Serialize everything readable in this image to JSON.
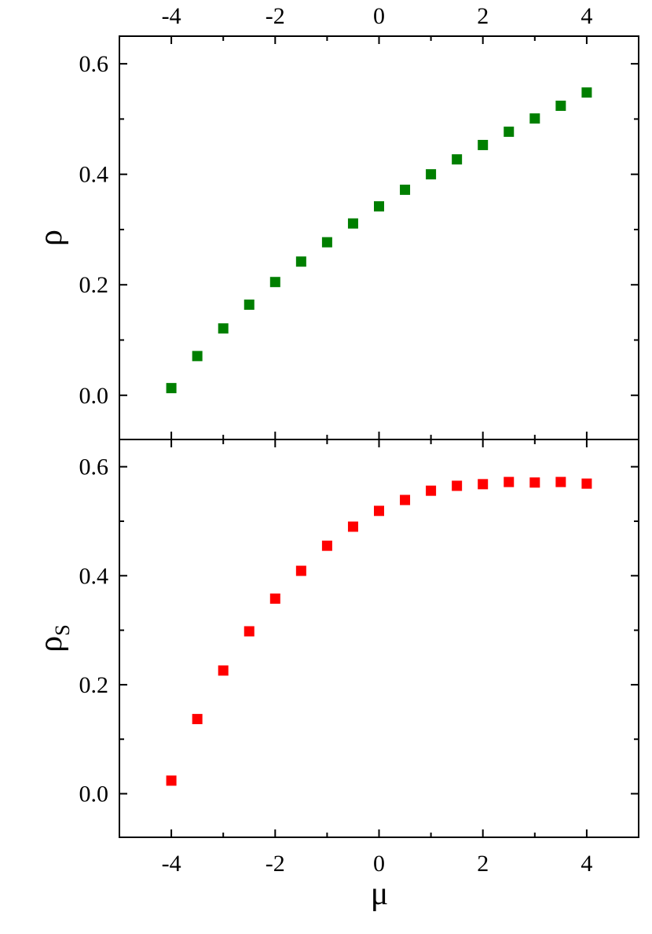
{
  "chart_data": [
    {
      "type": "scatter",
      "panel": "top",
      "ylabel": "ρ",
      "xlabel": "",
      "xlim": [
        -5,
        5
      ],
      "ylim": [
        -0.08,
        0.65
      ],
      "xticks": [
        -4,
        -2,
        0,
        2,
        4
      ],
      "xtick_labels": [
        "-4",
        "-2",
        "0",
        "2",
        "4"
      ],
      "yticks": [
        0.0,
        0.2,
        0.4,
        0.6
      ],
      "ytick_labels": [
        "0.0",
        "0.2",
        "0.4",
        "0.6"
      ],
      "marker_color": "#007f00",
      "marker": "square",
      "grid": false,
      "x": [
        -4,
        -3.5,
        -3,
        -2.5,
        -2,
        -1.5,
        -1,
        -0.5,
        0,
        0.5,
        1,
        1.5,
        2,
        2.5,
        3,
        3.5,
        4
      ],
      "y": [
        0.013,
        0.071,
        0.121,
        0.164,
        0.205,
        0.242,
        0.277,
        0.311,
        0.342,
        0.372,
        0.4,
        0.427,
        0.453,
        0.477,
        0.501,
        0.524,
        0.548
      ]
    },
    {
      "type": "scatter",
      "panel": "bottom",
      "ylabel": "ρ",
      "ylabel_sub": "S",
      "xlabel": "μ",
      "xlim": [
        -5,
        5
      ],
      "ylim": [
        -0.08,
        0.65
      ],
      "xticks": [
        -4,
        -2,
        0,
        2,
        4
      ],
      "xtick_labels": [
        "-4",
        "-2",
        "0",
        "2",
        "4"
      ],
      "yticks": [
        0.0,
        0.2,
        0.4,
        0.6
      ],
      "ytick_labels": [
        "0.0",
        "0.2",
        "0.4",
        "0.6"
      ],
      "marker_color": "#ff0000",
      "marker": "square",
      "grid": false,
      "x": [
        -4,
        -3.5,
        -3,
        -2.5,
        -2,
        -1.5,
        -1,
        -0.5,
        0,
        0.5,
        1,
        1.5,
        2,
        2.5,
        3,
        3.5,
        4
      ],
      "y": [
        0.024,
        0.137,
        0.226,
        0.298,
        0.358,
        0.409,
        0.455,
        0.49,
        0.519,
        0.539,
        0.556,
        0.565,
        0.568,
        0.572,
        0.571,
        0.572,
        0.569
      ]
    }
  ]
}
